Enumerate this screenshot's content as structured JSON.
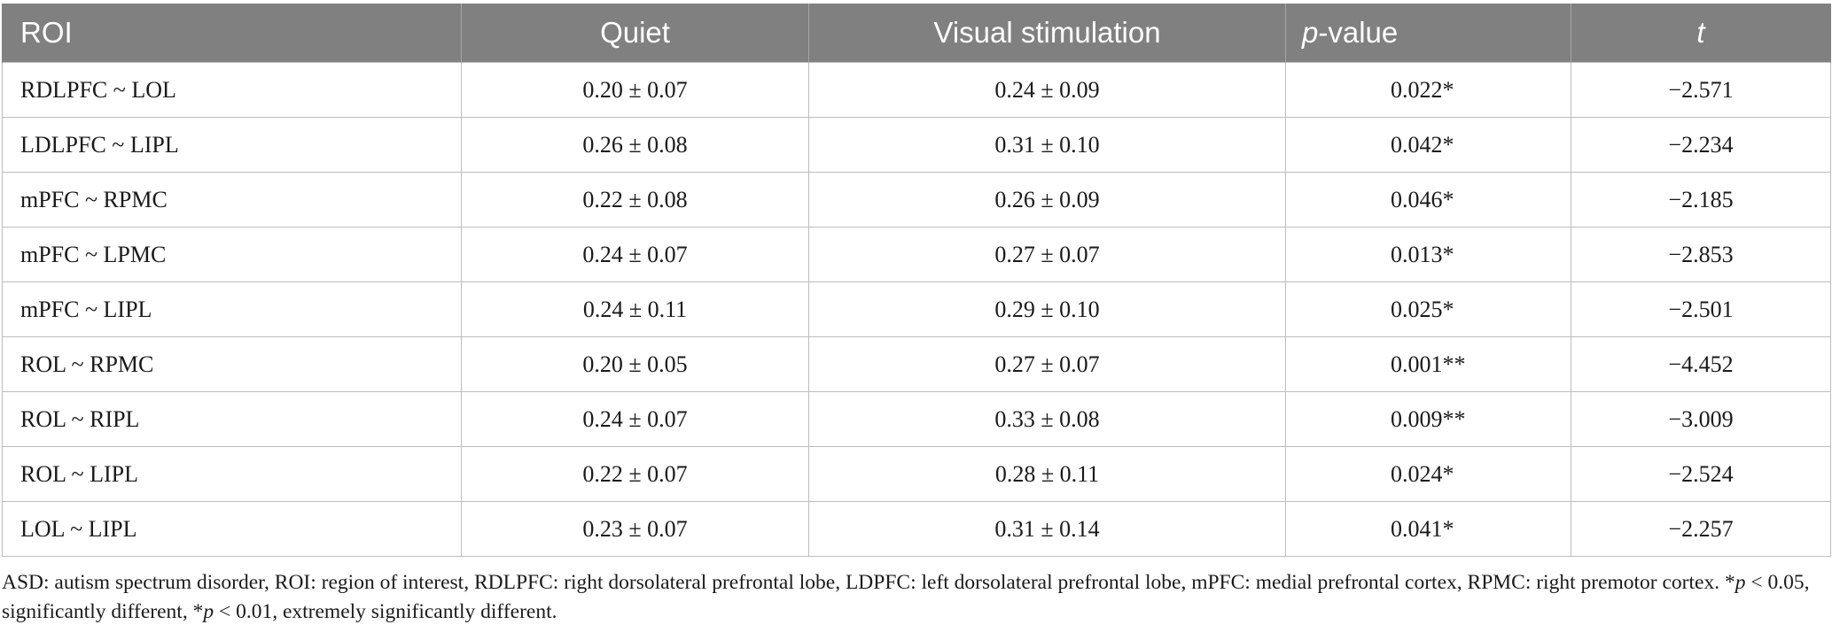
{
  "table": {
    "headers": {
      "roi": "ROI",
      "quiet": "Quiet",
      "visual": "Visual stimulation",
      "p_italic": "p",
      "p_rest": "-value",
      "t": "t"
    },
    "rows": [
      {
        "roi": "RDLPFC ~ LOL",
        "quiet": "0.20 ± 0.07",
        "visual": "0.24 ± 0.09",
        "p": "0.022*",
        "t": "−2.571"
      },
      {
        "roi": "LDLPFC ~ LIPL",
        "quiet": "0.26 ± 0.08",
        "visual": "0.31 ± 0.10",
        "p": "0.042*",
        "t": "−2.234"
      },
      {
        "roi": "mPFC ~ RPMC",
        "quiet": "0.22 ± 0.08",
        "visual": "0.26 ± 0.09",
        "p": "0.046*",
        "t": "−2.185"
      },
      {
        "roi": "mPFC ~ LPMC",
        "quiet": "0.24 ± 0.07",
        "visual": "0.27 ± 0.07",
        "p": "0.013*",
        "t": "−2.853"
      },
      {
        "roi": "mPFC ~ LIPL",
        "quiet": "0.24 ± 0.11",
        "visual": "0.29 ± 0.10",
        "p": "0.025*",
        "t": "−2.501"
      },
      {
        "roi": "ROL ~ RPMC",
        "quiet": "0.20 ± 0.05",
        "visual": "0.27 ± 0.07",
        "p": "0.001**",
        "t": "−4.452"
      },
      {
        "roi": "ROL ~ RIPL",
        "quiet": "0.24 ± 0.07",
        "visual": "0.33 ± 0.08",
        "p": "0.009**",
        "t": "−3.009"
      },
      {
        "roi": "ROL ~ LIPL",
        "quiet": "0.22 ± 0.07",
        "visual": "0.28 ± 0.11",
        "p": "0.024*",
        "t": "−2.524"
      },
      {
        "roi": "LOL ~ LIPL",
        "quiet": "0.23 ± 0.07",
        "visual": "0.31 ± 0.14",
        "p": "0.041*",
        "t": "−2.257"
      }
    ]
  },
  "footnote": {
    "part1": "ASD: autism spectrum disorder, ROI: region of interest, RDLPFC: right dorsolateral prefrontal lobe, LDPFC: left dorsolateral prefrontal lobe, mPFC: medial prefrontal cortex, RPMC: right premotor cortex. *",
    "p1": "p",
    "part2": " < 0.05, significantly different, *",
    "p2": "p",
    "part3": " < 0.01, extremely significantly different."
  }
}
